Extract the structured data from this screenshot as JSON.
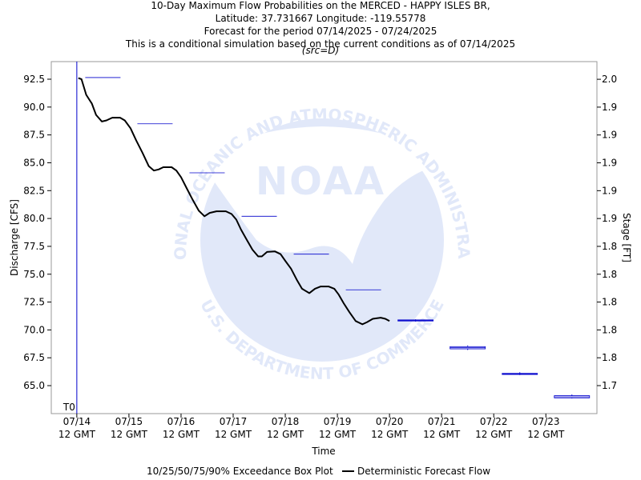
{
  "chart_data": {
    "type": "line",
    "title": [
      "10-Day Maximum Flow Probabilities on the MERCED - HAPPY ISLES BR,",
      "Latitude: 37.731667 Longitude: -119.55778",
      "Forecast for the period 07/14/2025 - 07/24/2025",
      "This is a conditional simulation based on the current conditions as of 07/14/2025"
    ],
    "subtitle": "(src=D)",
    "x_label": "Time",
    "y_label": "Discharge [CFS]",
    "y2_label": "Stage [FT]",
    "watermark": {
      "name": "NOAA",
      "ring_top": "NATIONAL OCEANIC AND ATMOSPHERIC ADMINISTRATION",
      "ring_bottom": "U.S. DEPARTMENT OF COMMERCE"
    },
    "xlim": [
      -0.49,
      9.98
    ],
    "xticks": [
      {
        "value": 0,
        "label": "07/14\n12 GMT"
      },
      {
        "value": 1,
        "label": "07/15\n12 GMT"
      },
      {
        "value": 2,
        "label": "07/16\n12 GMT"
      },
      {
        "value": 3,
        "label": "07/17\n12 GMT"
      },
      {
        "value": 4,
        "label": "07/18\n12 GMT"
      },
      {
        "value": 5,
        "label": "07/19\n12 GMT"
      },
      {
        "value": 6,
        "label": "07/20\n12 GMT"
      },
      {
        "value": 7,
        "label": "07/21\n12 GMT"
      },
      {
        "value": 8,
        "label": "07/22\n12 GMT"
      },
      {
        "value": 9,
        "label": "07/23\n12 GMT"
      }
    ],
    "ylim": [
      62.49,
      94.08
    ],
    "yticks": [
      {
        "value": 92.5,
        "label": "92.5"
      },
      {
        "value": 90,
        "label": "90.0"
      },
      {
        "value": 87.5,
        "label": "87.5"
      },
      {
        "value": 85,
        "label": "85.0"
      },
      {
        "value": 82.5,
        "label": "82.5"
      },
      {
        "value": 80,
        "label": "80.0"
      },
      {
        "value": 77.5,
        "label": "77.5"
      },
      {
        "value": 75,
        "label": "75.0"
      },
      {
        "value": 72.5,
        "label": "72.5"
      },
      {
        "value": 70,
        "label": "70.0"
      },
      {
        "value": 67.5,
        "label": "67.5"
      },
      {
        "value": 65,
        "label": "65.0"
      }
    ],
    "y2lim": [
      1.7199,
      1.9727
    ],
    "y2ticks": [
      {
        "value": 1.96,
        "label": "2.0"
      },
      {
        "value": 1.94,
        "label": "1.9"
      },
      {
        "value": 1.92,
        "label": "1.9"
      },
      {
        "value": 1.9,
        "label": "1.9"
      },
      {
        "value": 1.88,
        "label": "1.9"
      },
      {
        "value": 1.86,
        "label": "1.9"
      },
      {
        "value": 1.84,
        "label": "1.8"
      },
      {
        "value": 1.82,
        "label": "1.8"
      },
      {
        "value": 1.8,
        "label": "1.8"
      },
      {
        "value": 1.78,
        "label": "1.8"
      },
      {
        "value": 1.76,
        "label": "1.8"
      },
      {
        "value": 1.74,
        "label": "1.7"
      }
    ],
    "markers": [
      {
        "x": 0,
        "label": "T0",
        "color": "#0000cc"
      }
    ],
    "boxes": {
      "name": "10/25/50/75/90% Exceedance Box Plot",
      "color": "#0000cc",
      "x": [
        0.5,
        1.5,
        2.5,
        3.5,
        4.5,
        5.5,
        6.5,
        7.5,
        8.5,
        9.5
      ],
      "p10": [
        92.65,
        88.5,
        84.1,
        80.2,
        76.8,
        73.6,
        70.75,
        68.2,
        65.95,
        63.85
      ],
      "p25": [
        92.65,
        88.5,
        84.1,
        80.2,
        76.8,
        73.6,
        70.8,
        68.3,
        66.0,
        63.9
      ],
      "p50": [
        92.65,
        88.5,
        84.1,
        80.2,
        76.8,
        73.6,
        70.85,
        68.4,
        66.05,
        64.0
      ],
      "p75": [
        92.65,
        88.5,
        84.1,
        80.2,
        76.8,
        73.6,
        70.9,
        68.5,
        66.1,
        64.1
      ],
      "p90": [
        92.65,
        88.5,
        84.1,
        80.2,
        76.8,
        73.6,
        70.95,
        68.6,
        66.2,
        64.2
      ]
    },
    "series": [
      {
        "name": "Deterministic Forecast Flow",
        "color": "#000000",
        "x": [
          0.03,
          0.09,
          0.18,
          0.29,
          0.37,
          0.48,
          0.57,
          0.68,
          0.83,
          0.92,
          1.03,
          1.14,
          1.26,
          1.38,
          1.48,
          1.57,
          1.66,
          1.82,
          1.91,
          2.0,
          2.11,
          2.22,
          2.34,
          2.45,
          2.55,
          2.68,
          2.86,
          2.97,
          3.06,
          3.15,
          3.26,
          3.37,
          3.48,
          3.55,
          3.65,
          3.8,
          3.91,
          4.0,
          4.11,
          4.22,
          4.32,
          4.46,
          4.57,
          4.68,
          4.83,
          4.94,
          5.02,
          5.12,
          5.23,
          5.35,
          5.48,
          5.57,
          5.68,
          5.83,
          5.92,
          6.0
        ],
        "values": [
          92.6,
          92.5,
          91.1,
          90.3,
          89.3,
          88.7,
          88.8,
          89.05,
          89.05,
          88.8,
          88.1,
          87.0,
          85.9,
          84.7,
          84.3,
          84.4,
          84.6,
          84.6,
          84.3,
          83.7,
          82.7,
          81.7,
          80.7,
          80.2,
          80.5,
          80.65,
          80.65,
          80.4,
          79.9,
          79.0,
          78.1,
          77.2,
          76.6,
          76.6,
          77.0,
          77.05,
          76.8,
          76.2,
          75.5,
          74.5,
          73.7,
          73.3,
          73.7,
          73.9,
          73.9,
          73.7,
          73.2,
          72.4,
          71.6,
          70.8,
          70.5,
          70.7,
          71.0,
          71.1,
          71.0,
          70.8
        ]
      }
    ]
  }
}
